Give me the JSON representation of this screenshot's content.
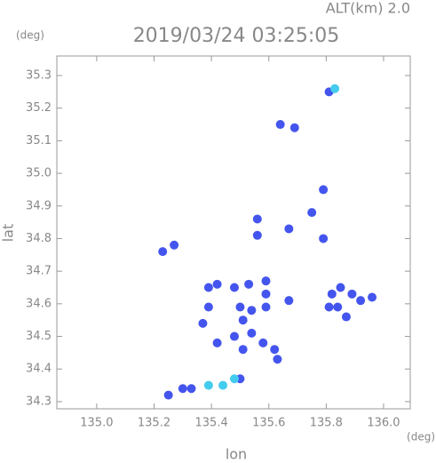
{
  "chart_data": {
    "type": "scatter",
    "title": "2019/03/24 03:25:05",
    "subtitle": "ALT(km) 2.0",
    "x_label": "lon",
    "y_label": "lat",
    "x_unit": "(deg)",
    "y_unit": "(deg)",
    "xlim": [
      134.861,
      136.093
    ],
    "ylim": [
      34.278,
      35.36
    ],
    "xticks": [
      {
        "value": 135.0,
        "label": "135.0"
      },
      135.2,
      135.4,
      135.6,
      135.8,
      {
        "value": 136.0,
        "label": "136.0"
      }
    ],
    "yticks": [
      35.3,
      35.2,
      35.1,
      {
        "value": 35.0,
        "label": "35.0"
      },
      34.9,
      34.8,
      34.7,
      34.6,
      34.5,
      34.4,
      34.3
    ],
    "series": [
      {
        "color": "#4455ee",
        "x": [
          135.81,
          135.64,
          135.69,
          135.79,
          135.75,
          135.56,
          135.56,
          135.67,
          135.79,
          135.23,
          135.27,
          135.82,
          135.89,
          135.84,
          135.87,
          135.81,
          135.92,
          135.96,
          135.85,
          135.39,
          135.42,
          135.48,
          135.53,
          135.59,
          135.59,
          135.5,
          135.54,
          135.59,
          135.51,
          135.54,
          135.48,
          135.51,
          135.58,
          135.62,
          135.63,
          135.39,
          135.37,
          135.42,
          135.67,
          135.25,
          135.3,
          135.33,
          135.5
        ],
        "y": [
          35.25,
          35.15,
          35.14,
          34.95,
          34.88,
          34.86,
          34.81,
          34.83,
          34.8,
          34.76,
          34.78,
          34.63,
          34.63,
          34.59,
          34.56,
          34.59,
          34.61,
          34.62,
          34.65,
          34.65,
          34.66,
          34.65,
          34.66,
          34.67,
          34.63,
          34.59,
          34.58,
          34.59,
          34.55,
          34.51,
          34.5,
          34.46,
          34.48,
          34.46,
          34.43,
          34.59,
          34.54,
          34.48,
          34.61,
          34.32,
          34.34,
          34.34,
          34.37
        ]
      },
      {
        "color": "#44ccee",
        "x": [
          135.83,
          135.39,
          135.44,
          135.48
        ],
        "y": [
          35.26,
          34.35,
          34.35,
          34.37
        ]
      }
    ]
  }
}
